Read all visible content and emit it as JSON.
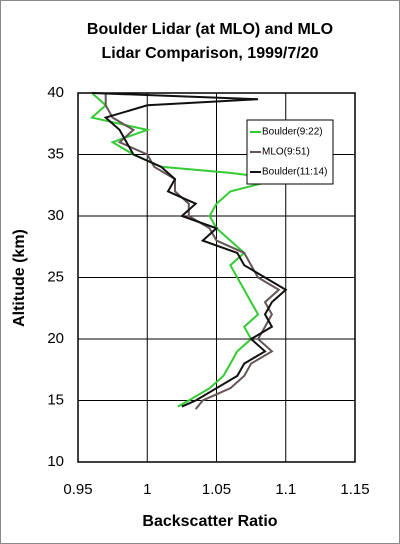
{
  "chart_data": {
    "type": "profile",
    "title": [
      "Boulder Lidar (at MLO) and MLO",
      "Lidar Comparison, 1999/7/20"
    ],
    "x_label": "Backscatter Ratio",
    "y_label": "Altitude (km)",
    "xlim": [
      0.95,
      1.15
    ],
    "xticks": [
      0.95,
      1,
      1.05,
      1.1,
      1.15
    ],
    "ylim": [
      10,
      40
    ],
    "yticks": [
      10,
      15,
      20,
      25,
      30,
      35,
      40
    ],
    "grid": true,
    "legend": "upper right",
    "series": [
      {
        "name": "Boulder(9:22)",
        "color": "#33cc33",
        "x": [
          1.022,
          1.03,
          1.045,
          1.055,
          1.06,
          1.065,
          1.075,
          1.07,
          1.08,
          1.075,
          1.07,
          1.065,
          1.06,
          1.07,
          1.06,
          1.05,
          1.045,
          1.05,
          1.06,
          1.095,
          1.06,
          1.01,
          0.99,
          0.975,
          1.0,
          0.96,
          0.97,
          0.96
        ],
        "y": [
          14.5,
          15,
          16,
          17,
          18,
          19,
          20,
          21,
          22,
          23,
          24,
          25,
          26,
          27,
          28,
          29,
          30,
          31,
          32,
          33,
          33.5,
          34,
          35,
          36,
          37,
          38,
          39,
          40
        ]
      },
      {
        "name": "MLO(9:51)",
        "color": "#665555",
        "x": [
          1.035,
          1.04,
          1.06,
          1.07,
          1.075,
          1.09,
          1.08,
          1.085,
          1.09,
          1.085,
          1.095,
          1.08,
          1.075,
          1.07,
          1.05,
          1.045,
          1.03,
          1.03,
          1.02,
          1.02,
          1.005,
          1.0,
          0.98,
          0.99,
          0.975,
          0.97,
          0.97
        ],
        "y": [
          14.3,
          15,
          16,
          17,
          18,
          19,
          20,
          21,
          22,
          23,
          24,
          25,
          26,
          27,
          28,
          29,
          30,
          31,
          32,
          33,
          34,
          35,
          36,
          37,
          38,
          39,
          40
        ]
      },
      {
        "name": "Boulder(11:14)",
        "color": "#111111",
        "x": [
          1.025,
          1.035,
          1.05,
          1.065,
          1.07,
          1.085,
          1.075,
          1.09,
          1.085,
          1.09,
          1.1,
          1.085,
          1.07,
          1.065,
          1.04,
          1.05,
          1.025,
          1.035,
          1.015,
          1.02,
          1.01,
          0.99,
          0.985,
          0.98,
          0.97,
          1.0,
          1.08,
          0.96
        ],
        "y": [
          14.5,
          15,
          16,
          17,
          18,
          19,
          20,
          21,
          22,
          23,
          24,
          25,
          26,
          27,
          28,
          29,
          30,
          31,
          32,
          33,
          34,
          35,
          36,
          37,
          38,
          39,
          39.5,
          40
        ]
      }
    ]
  }
}
